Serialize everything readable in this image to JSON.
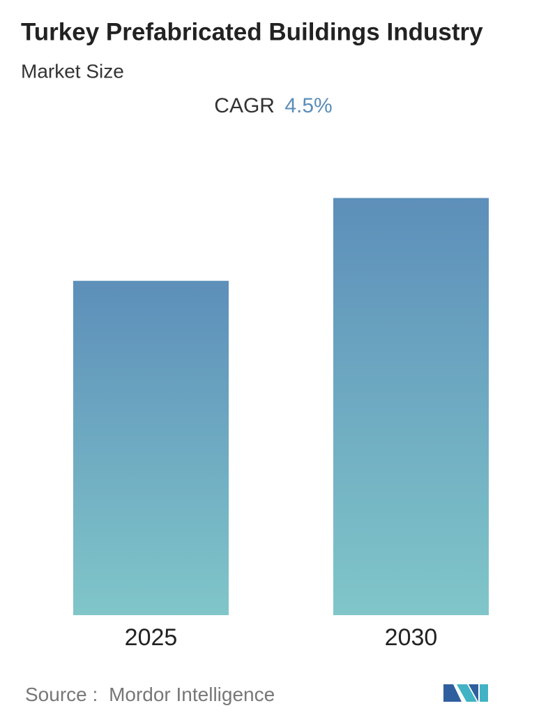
{
  "chart_data": {
    "type": "bar",
    "title": "Turkey Prefabricated Buildings Industry",
    "subtitle": "Market Size",
    "cagr_label": "CAGR",
    "cagr_value": "4.5%",
    "categories": [
      "2025",
      "2030"
    ],
    "values": [
      45.6,
      56.9
    ],
    "gradient": [
      "#5d8fba",
      "#80c6c9"
    ],
    "ylim": [
      0,
      60
    ],
    "source_label": "Source :",
    "source": "Mordor Intelligence"
  }
}
